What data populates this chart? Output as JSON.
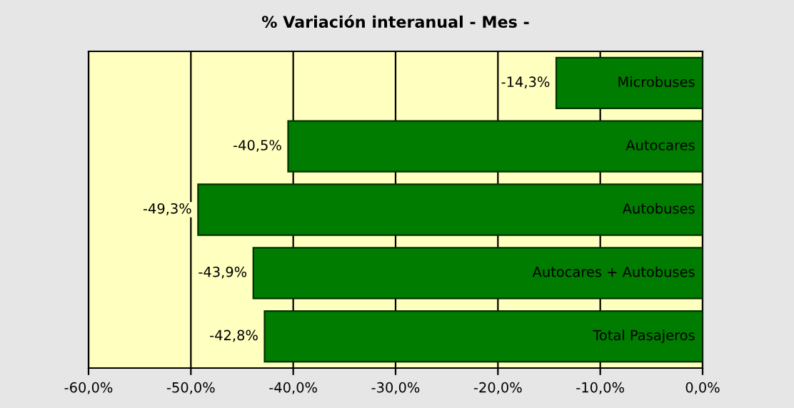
{
  "chart_data": {
    "type": "bar",
    "orientation": "horizontal",
    "title": "% Variación interanual - Mes -",
    "categories": [
      "Microbuses",
      "Autocares",
      "Autobuses",
      "Autocares + Autobuses",
      "Total Pasajeros"
    ],
    "values": [
      -14.3,
      -40.5,
      -49.3,
      -43.9,
      -42.8
    ],
    "value_labels": [
      "-14,3%",
      "-40,5%",
      "-49,3%",
      "-43,9%",
      "-42,8%"
    ],
    "color": "#007c00",
    "xlim": [
      -60,
      0
    ],
    "xticks": [
      {
        "value": -60,
        "label": "-60,0%"
      },
      {
        "value": -50,
        "label": "-50,0%"
      },
      {
        "value": -40,
        "label": "-40,0%"
      },
      {
        "value": -30,
        "label": "-30,0%"
      },
      {
        "value": -20,
        "label": "-20,0%"
      },
      {
        "value": -10,
        "label": "-10,0%"
      },
      {
        "value": 0,
        "label": "0,0%"
      }
    ],
    "bands": [
      {
        "axis": "x",
        "from": -60,
        "to": 0,
        "color": "#ffffc0"
      }
    ],
    "grid": "x",
    "legend": false
  }
}
